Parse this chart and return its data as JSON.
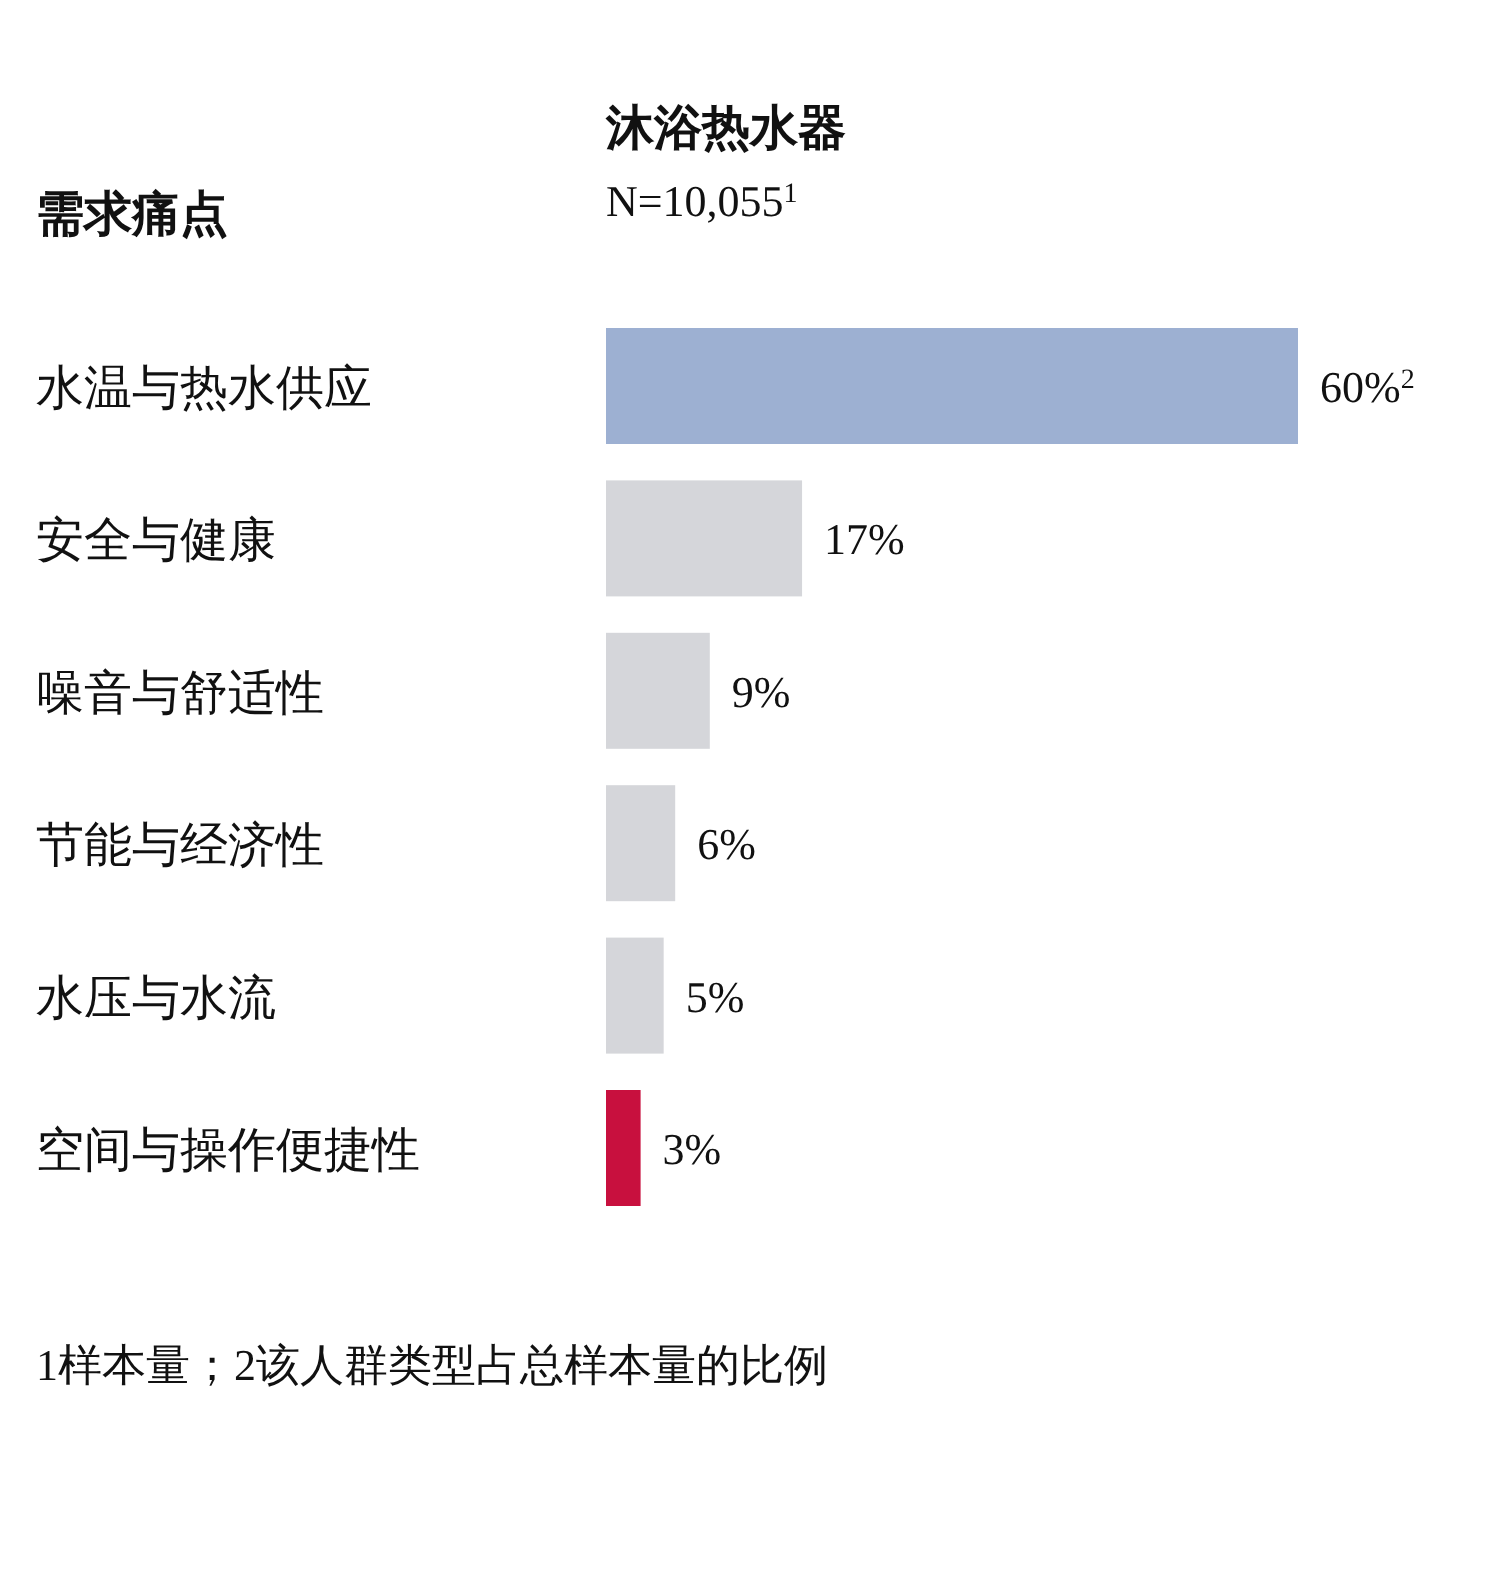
{
  "chart_data": {
    "type": "bar",
    "orientation": "horizontal",
    "title": "沐浴热水器",
    "subtitle": "N=10,055$^{1}$",
    "ylabel": "需求痛点",
    "categories": [
      "水温与热水供应",
      "安全与健康",
      "噪音与舒适性",
      "节能与经济性",
      "水压与水流",
      "空间与操作便捷性"
    ],
    "values": [
      60,
      17,
      9,
      6,
      5,
      3
    ],
    "colors": [
      "#9db0d2",
      "#d5d6da",
      "#d5d6da",
      "#d5d6da",
      "#d5d6da",
      "#c8103e"
    ],
    "value_labels": [
      "60%$^{2}$",
      "17%",
      "9%",
      "6%",
      "5%",
      "3%"
    ],
    "annotations": [
      "1样本量；2该人群类型占总样本量的比例"
    ]
  }
}
